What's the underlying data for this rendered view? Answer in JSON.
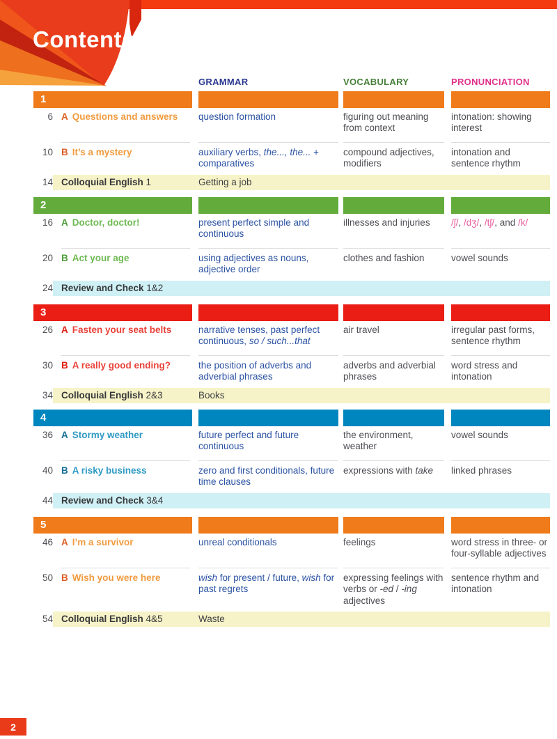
{
  "page": {
    "title": "Contents",
    "page_number": "2"
  },
  "colors": {
    "top_bar": "#F33B0F",
    "accent_red": "#E93A1A",
    "grammar_header": "#2B3990",
    "vocabulary_header": "#467F39",
    "pronunciation_header": "#E0318B",
    "grammar_text": "#2B52A3",
    "body_text": "#4D4E53",
    "phonetic_pink": "#E75C9E",
    "divider": "#DCDCDC",
    "yellow_band": "#F7F3C8",
    "blue_band": "#CFF0F5"
  },
  "columns": {
    "grammar": "GRAMMAR",
    "vocabulary": "VOCABULARY",
    "pronunciation": "PRONUNCIATION"
  },
  "units": [
    {
      "number": "1",
      "bar_color": "#EF7B1B",
      "letter_color": "#DD5F27",
      "title_color": "#F19B3F",
      "lessons": [
        {
          "page": "6",
          "letter": "A",
          "title": "Questions and answers",
          "grammar": [
            {
              "t": "question formation"
            }
          ],
          "vocabulary": [
            {
              "t": "figuring out meaning from context"
            }
          ],
          "pronunciation": [
            {
              "t": "intonation: showing interest"
            }
          ]
        },
        {
          "page": "10",
          "letter": "B",
          "title": "It’s a mystery",
          "grammar": [
            {
              "t": "auxiliary verbs, "
            },
            {
              "t": "the..., the...",
              "i": true
            },
            {
              "t": " + comparatives"
            }
          ],
          "vocabulary": [
            {
              "t": "compound adjectives, modifiers"
            }
          ],
          "pronunciation": [
            {
              "t": "intonation and sentence rhythm"
            }
          ]
        }
      ],
      "band": {
        "page": "14",
        "label": "Colloquial English",
        "suffix": "1",
        "content": "Getting a job",
        "bg": "#F7F3C8"
      }
    },
    {
      "number": "2",
      "bar_color": "#63AC3C",
      "letter_color": "#4C9C38",
      "title_color": "#6FBA53",
      "lessons": [
        {
          "page": "16",
          "letter": "A",
          "title": "Doctor, doctor!",
          "grammar": [
            {
              "t": "present perfect simple and continuous"
            }
          ],
          "vocabulary": [
            {
              "t": "illnesses and injuries"
            }
          ],
          "pronunciation": [
            {
              "t": "/ʃ/",
              "p": true
            },
            {
              "t": ", "
            },
            {
              "t": "/dʒ/",
              "p": true
            },
            {
              "t": ", "
            },
            {
              "t": "/tʃ/",
              "p": true
            },
            {
              "t": ", and "
            },
            {
              "t": "/k/",
              "p": true
            }
          ]
        },
        {
          "page": "20",
          "letter": "B",
          "title": "Act your age",
          "grammar": [
            {
              "t": "using adjectives as nouns, adjective order"
            }
          ],
          "vocabulary": [
            {
              "t": "clothes and fashion"
            }
          ],
          "pronunciation": [
            {
              "t": "vowel sounds"
            }
          ]
        }
      ],
      "band": {
        "page": "24",
        "label": "Review and Check",
        "suffix": "1&2",
        "content": "",
        "bg": "#CFF0F5"
      }
    },
    {
      "number": "3",
      "bar_color": "#EA1E15",
      "letter_color": "#DF1F12",
      "title_color": "#E9423A",
      "lessons": [
        {
          "page": "26",
          "letter": "A",
          "title": "Fasten your seat belts",
          "grammar": [
            {
              "t": "narrative tenses, past perfect continuous, "
            },
            {
              "t": "so / such...that",
              "i": true
            }
          ],
          "vocabulary": [
            {
              "t": "air travel"
            }
          ],
          "pronunciation": [
            {
              "t": "irregular past forms, sentence rhythm"
            }
          ]
        },
        {
          "page": "30",
          "letter": "B",
          "title": "A really good ending?",
          "grammar": [
            {
              "t": "the position of adverbs and adverbial phrases"
            }
          ],
          "vocabulary": [
            {
              "t": "adverbs and adverbial phrases"
            }
          ],
          "pronunciation": [
            {
              "t": "word stress and intonation"
            }
          ]
        }
      ],
      "band": {
        "page": "34",
        "label": "Colloquial English",
        "suffix": "2&3",
        "content": "Books",
        "bg": "#F7F3C8"
      }
    },
    {
      "number": "4",
      "bar_color": "#0086BF",
      "letter_color": "#156F96",
      "title_color": "#2F9AC4",
      "lessons": [
        {
          "page": "36",
          "letter": "A",
          "title": "Stormy weather",
          "grammar": [
            {
              "t": "future perfect and future continuous"
            }
          ],
          "vocabulary": [
            {
              "t": "the environment, weather"
            }
          ],
          "pronunciation": [
            {
              "t": "vowel sounds"
            }
          ]
        },
        {
          "page": "40",
          "letter": "B",
          "title": "A risky business",
          "grammar": [
            {
              "t": "zero and first conditionals, future time clauses"
            }
          ],
          "vocabulary": [
            {
              "t": "expressions with "
            },
            {
              "t": "take",
              "i": true
            }
          ],
          "pronunciation": [
            {
              "t": "linked phrases"
            }
          ]
        }
      ],
      "band": {
        "page": "44",
        "label": "Review and Check",
        "suffix": "3&4",
        "content": "",
        "bg": "#CFF0F5"
      }
    },
    {
      "number": "5",
      "bar_color": "#EF7B1B",
      "letter_color": "#DD5F27",
      "title_color": "#F19B3F",
      "lessons": [
        {
          "page": "46",
          "letter": "A",
          "title": "I’m a survivor",
          "grammar": [
            {
              "t": "unreal conditionals"
            }
          ],
          "vocabulary": [
            {
              "t": "feelings"
            }
          ],
          "pronunciation": [
            {
              "t": "word stress in three- or four-syllable adjectives"
            }
          ]
        },
        {
          "page": "50",
          "letter": "B",
          "title": "Wish you were here",
          "grammar": [
            {
              "t": "wish",
              "i": true
            },
            {
              "t": " for present / future, "
            },
            {
              "t": "wish",
              "i": true
            },
            {
              "t": " for past regrets"
            }
          ],
          "vocabulary": [
            {
              "t": "expressing feelings with verbs or "
            },
            {
              "t": "-ed",
              "i": true
            },
            {
              "t": " / "
            },
            {
              "t": "-ing",
              "i": true
            },
            {
              "t": " adjectives"
            }
          ],
          "pronunciation": [
            {
              "t": "sentence rhythm and intonation"
            }
          ]
        }
      ],
      "band": {
        "page": "54",
        "label": "Colloquial English",
        "suffix": "4&5",
        "content": "Waste",
        "bg": "#F7F3C8"
      }
    }
  ]
}
